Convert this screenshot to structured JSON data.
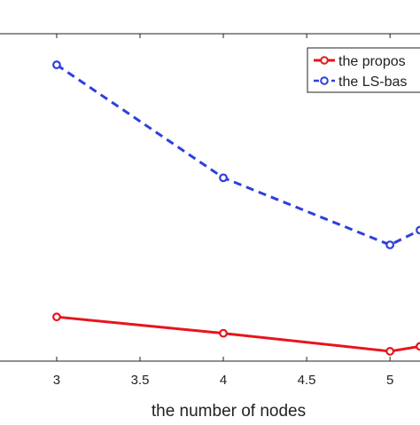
{
  "chart_data": {
    "type": "line",
    "xlabel": "the number of nodes",
    "ylabel": "",
    "title": "",
    "x_ticks": [
      "3",
      "3.5",
      "4",
      "4.5",
      "5"
    ],
    "xlim": [
      2.66,
      5.18
    ],
    "ylim": [
      0,
      1
    ],
    "grid": false,
    "legend_position": "top-right",
    "series": [
      {
        "name": "the propos",
        "color": "#e8141c",
        "line_style": "solid",
        "marker": "circle",
        "x": [
          3,
          4,
          5,
          5.18
        ],
        "y": [
          0.135,
          0.085,
          0.03,
          0.045
        ]
      },
      {
        "name": "the LS-bas",
        "color": "#2d3fe0",
        "line_style": "dashed",
        "marker": "circle",
        "x": [
          3,
          4,
          5,
          5.18
        ],
        "y": [
          0.905,
          0.56,
          0.355,
          0.4
        ]
      }
    ]
  }
}
